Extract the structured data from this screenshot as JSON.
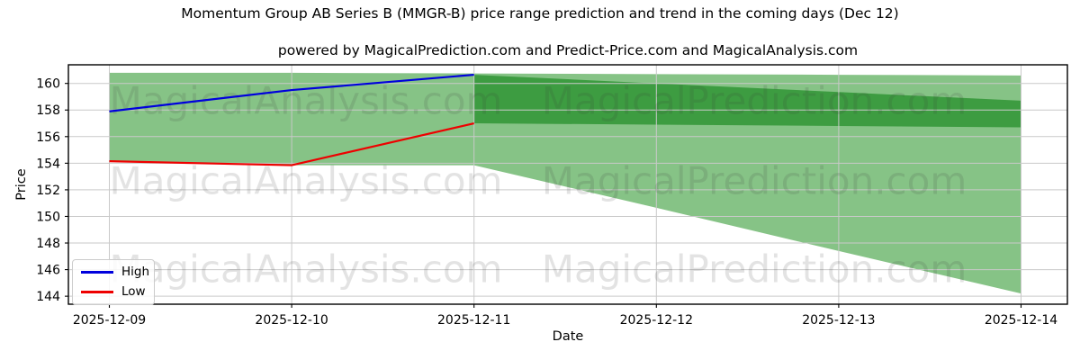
{
  "chart_data": {
    "type": "line",
    "title": "Momentum Group AB Series B (MMGR-B) price range prediction and trend in the coming days (Dec 12)",
    "subtitle": "powered by MagicalPrediction.com and Predict-Price.com and MagicalAnalysis.com",
    "xlabel": "Date",
    "ylabel": "Price",
    "x": [
      "2025-12-09",
      "2025-12-10",
      "2025-12-11",
      "2025-12-12",
      "2025-12-13",
      "2025-12-14"
    ],
    "yticks": [
      144,
      146,
      148,
      150,
      152,
      154,
      156,
      158,
      160
    ],
    "ylim": [
      143.4,
      161.4
    ],
    "grid": true,
    "series": [
      {
        "name": "High",
        "color": "#0000dd",
        "x": [
          "2025-12-09",
          "2025-12-10",
          "2025-12-11"
        ],
        "values": [
          157.9,
          159.5,
          160.65
        ]
      },
      {
        "name": "Low",
        "color": "#ee0000",
        "x": [
          "2025-12-09",
          "2025-12-10",
          "2025-12-11"
        ],
        "values": [
          154.15,
          153.85,
          157.0
        ]
      }
    ],
    "bands": [
      {
        "name": "prediction-range-outer",
        "color": "#86c386",
        "x": [
          "2025-12-09",
          "2025-12-10",
          "2025-12-11",
          "2025-12-12",
          "2025-12-13",
          "2025-12-14"
        ],
        "upper": [
          160.8,
          160.8,
          160.75,
          160.7,
          160.65,
          160.6
        ],
        "lower": [
          154.15,
          153.85,
          153.85,
          150.65,
          147.4,
          144.2
        ]
      },
      {
        "name": "prediction-range-inner",
        "color": "#3d9c41",
        "x": [
          "2025-12-11",
          "2025-12-12",
          "2025-12-13",
          "2025-12-14"
        ],
        "upper": [
          160.65,
          160.0,
          159.35,
          158.7
        ],
        "lower": [
          157.0,
          156.9,
          156.8,
          156.7
        ]
      }
    ],
    "legend": {
      "position": "lower left",
      "items": [
        {
          "label": "High",
          "color": "#0000dd"
        },
        {
          "label": "Low",
          "color": "#ee0000"
        }
      ]
    }
  },
  "watermarks": {
    "left": "MagicalAnalysis.com",
    "right": "MagicalPrediction.com"
  }
}
